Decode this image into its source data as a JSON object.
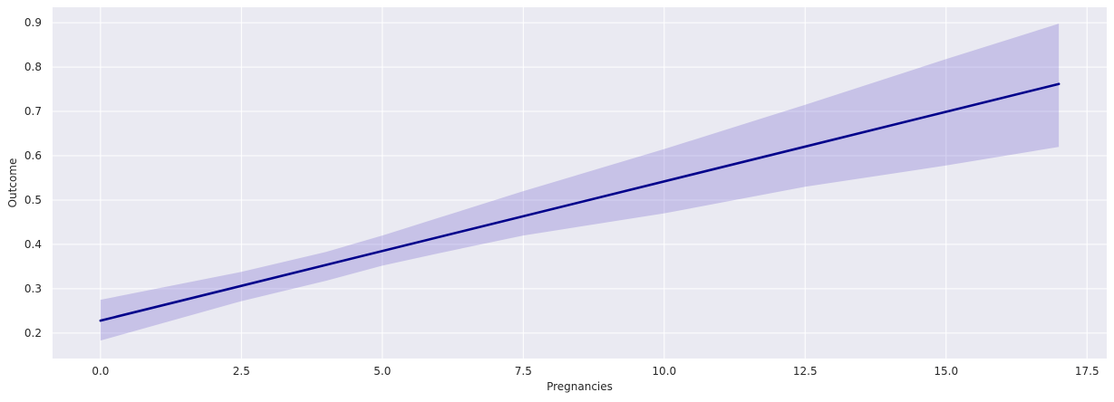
{
  "chart_data": {
    "type": "line",
    "title": "",
    "xlabel": "Pregnancies",
    "ylabel": "Outcome",
    "xlim": [
      -0.85,
      17.85
    ],
    "ylim": [
      0.1425,
      0.935
    ],
    "xticks": [
      0.0,
      2.5,
      5.0,
      7.5,
      10.0,
      12.5,
      15.0,
      17.5
    ],
    "xtick_labels": [
      "0.0",
      "2.5",
      "5.0",
      "7.5",
      "10.0",
      "12.5",
      "15.0",
      "17.5"
    ],
    "yticks": [
      0.2,
      0.3,
      0.4,
      0.5,
      0.6,
      0.7,
      0.8,
      0.9
    ],
    "ytick_labels": [
      "0.2",
      "0.3",
      "0.4",
      "0.5",
      "0.6",
      "0.7",
      "0.8",
      "0.9"
    ],
    "grid": true,
    "legend": "none",
    "series": [
      {
        "x": [
          0,
          17
        ],
        "y": [
          0.228,
          0.762
        ],
        "color": "#00008b"
      }
    ],
    "confidence_band": {
      "color": "#6a5acd",
      "opacity": 0.28,
      "x": [
        0,
        2.5,
        4,
        5,
        6,
        7.5,
        10,
        12.5,
        15,
        17
      ],
      "upper": [
        0.275,
        0.338,
        0.383,
        0.42,
        0.46,
        0.52,
        0.615,
        0.715,
        0.818,
        0.898
      ],
      "lower": [
        0.183,
        0.272,
        0.318,
        0.352,
        0.38,
        0.42,
        0.47,
        0.53,
        0.578,
        0.62
      ]
    },
    "style": {
      "background": "#eaeaf2",
      "grid_color": "#ffffff"
    }
  }
}
